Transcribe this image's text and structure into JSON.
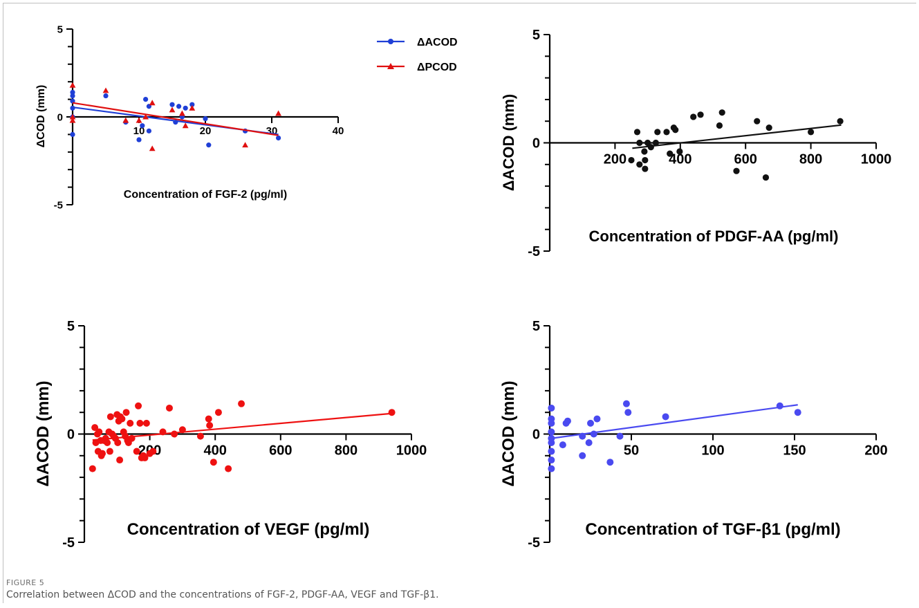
{
  "figure": {
    "label": "FIGURE 5",
    "caption": "Correlation between ΔCOD and the concentrations of FGF-2, PDGF-AA, VEGF and TGF-β1."
  },
  "colors": {
    "blue": "#1f3fd6",
    "red": "#e01010",
    "black": "#111111",
    "vegf": "#ee1111",
    "tgf": "#4a4af0"
  },
  "chart_data": [
    {
      "id": "fgf2",
      "type": "scatter",
      "xlabel": "Concentration of FGF-2 (pg/ml)",
      "ylabel": "ΔCOD (mm)",
      "xlim": [
        0,
        40
      ],
      "ylim": [
        -5,
        5
      ],
      "x_ticks": [
        "10",
        "20",
        "30",
        "40"
      ],
      "y_ticks": [
        "5",
        "0",
        "-5"
      ],
      "legend": {
        "position": "top-right",
        "entries": [
          "ΔACOD",
          "ΔPCOD"
        ]
      },
      "series": [
        {
          "name": "ΔACOD",
          "color": "#1f3fd6",
          "marker": "circle",
          "points": [
            [
              0,
              1.4
            ],
            [
              0,
              1.2
            ],
            [
              0,
              0.9
            ],
            [
              0,
              0.5
            ],
            [
              0,
              0
            ],
            [
              0,
              -1
            ],
            [
              5,
              1.2
            ],
            [
              8,
              -0.3
            ],
            [
              10,
              -1.3
            ],
            [
              10.5,
              -0.5
            ],
            [
              11,
              1
            ],
            [
              11.5,
              0.6
            ],
            [
              11.5,
              -0.8
            ],
            [
              15,
              0.7
            ],
            [
              15.5,
              -0.3
            ],
            [
              16,
              0.6
            ],
            [
              16.5,
              0
            ],
            [
              17,
              0.5
            ],
            [
              18,
              0.7
            ],
            [
              20,
              -0.1
            ],
            [
              20.5,
              -1.6
            ],
            [
              26,
              -0.8
            ],
            [
              31,
              -1.2
            ]
          ],
          "trend": [
            [
              0,
              0.55
            ],
            [
              31,
              -1.0
            ]
          ]
        },
        {
          "name": "ΔPCOD",
          "color": "#e01010",
          "marker": "triangle",
          "points": [
            [
              0,
              1.8
            ],
            [
              0,
              0
            ],
            [
              0,
              -0.2
            ],
            [
              5,
              1.5
            ],
            [
              8,
              -0.2
            ],
            [
              10,
              -0.2
            ],
            [
              11,
              0
            ],
            [
              12,
              0.8
            ],
            [
              12,
              -1.8
            ],
            [
              15,
              0.4
            ],
            [
              16.5,
              0.2
            ],
            [
              17,
              -0.5
            ],
            [
              18,
              0.5
            ],
            [
              26,
              -1.6
            ],
            [
              31,
              0.2
            ]
          ],
          "trend": [
            [
              0,
              0.8
            ],
            [
              31,
              -1.05
            ]
          ]
        }
      ]
    },
    {
      "id": "pdgf",
      "type": "scatter",
      "xlabel": "Concentration of PDGF-AA (pg/ml)",
      "ylabel": "ΔACOD (mm)",
      "xlim": [
        0,
        1000
      ],
      "ylim": [
        -5,
        5
      ],
      "x_ticks": [
        "200",
        "400",
        "600",
        "800",
        "1000"
      ],
      "y_ticks": [
        "5",
        "0",
        "-5"
      ],
      "series": [
        {
          "name": "",
          "color": "#111111",
          "marker": "circle",
          "points": [
            [
              250,
              -0.8
            ],
            [
              268,
              0.5
            ],
            [
              275,
              -1
            ],
            [
              275,
              0
            ],
            [
              290,
              -0.4
            ],
            [
              292,
              -0.8
            ],
            [
              292,
              -1.2
            ],
            [
              300,
              0
            ],
            [
              310,
              -0.2
            ],
            [
              325,
              0
            ],
            [
              330,
              0.5
            ],
            [
              358,
              0.5
            ],
            [
              368,
              -0.5
            ],
            [
              380,
              0.7
            ],
            [
              385,
              0.6
            ],
            [
              398,
              -0.4
            ],
            [
              440,
              1.2
            ],
            [
              462,
              1.3
            ],
            [
              520,
              0.8
            ],
            [
              528,
              1.4
            ],
            [
              572,
              -1.3
            ],
            [
              635,
              1
            ],
            [
              662,
              -1.6
            ],
            [
              672,
              0.7
            ],
            [
              800,
              0.5
            ],
            [
              890,
              1
            ]
          ],
          "trend": [
            [
              253,
              -0.25
            ],
            [
              893,
              0.82
            ]
          ]
        }
      ]
    },
    {
      "id": "vegf",
      "type": "scatter",
      "xlabel": "Concentration of VEGF (pg/ml)",
      "ylabel": "ΔACOD (mm)",
      "xlim": [
        0,
        1000
      ],
      "ylim": [
        -5,
        5
      ],
      "x_ticks": [
        "200",
        "400",
        "600",
        "800",
        "1000"
      ],
      "y_ticks": [
        "5",
        "0",
        "-5"
      ],
      "series": [
        {
          "name": "",
          "color": "#ee1111",
          "marker": "circle",
          "points": [
            [
              25,
              -1.6
            ],
            [
              32,
              0.3
            ],
            [
              35,
              -0.4
            ],
            [
              40,
              0
            ],
            [
              42,
              -0.8
            ],
            [
              45,
              0.1
            ],
            [
              50,
              -0.3
            ],
            [
              52,
              -1
            ],
            [
              55,
              -0.9
            ],
            [
              60,
              -0.3
            ],
            [
              65,
              -0.2
            ],
            [
              70,
              -0.4
            ],
            [
              75,
              0.1
            ],
            [
              78,
              -0.8
            ],
            [
              80,
              0.8
            ],
            [
              85,
              0
            ],
            [
              90,
              -0.1
            ],
            [
              95,
              -0.2
            ],
            [
              100,
              0.9
            ],
            [
              102,
              -0.4
            ],
            [
              105,
              0.6
            ],
            [
              108,
              -1.2
            ],
            [
              110,
              0.8
            ],
            [
              115,
              0.7
            ],
            [
              120,
              0.1
            ],
            [
              125,
              -0.1
            ],
            [
              128,
              1
            ],
            [
              132,
              -0.3
            ],
            [
              135,
              -0.4
            ],
            [
              140,
              0.5
            ],
            [
              145,
              -0.2
            ],
            [
              160,
              -0.8
            ],
            [
              165,
              1.3
            ],
            [
              170,
              0.5
            ],
            [
              175,
              -1.1
            ],
            [
              180,
              -1
            ],
            [
              185,
              -1.1
            ],
            [
              190,
              0.5
            ],
            [
              200,
              -0.9
            ],
            [
              210,
              -0.8
            ],
            [
              240,
              0.1
            ],
            [
              260,
              1.2
            ],
            [
              275,
              0
            ],
            [
              300,
              0.2
            ],
            [
              355,
              -0.1
            ],
            [
              380,
              0.7
            ],
            [
              383,
              0.4
            ],
            [
              395,
              -1.3
            ],
            [
              410,
              1
            ],
            [
              440,
              -1.6
            ],
            [
              480,
              1.4
            ],
            [
              940,
              1
            ]
          ],
          "trend": [
            [
              25,
              -0.28
            ],
            [
              940,
              0.95
            ]
          ]
        }
      ]
    },
    {
      "id": "tgf",
      "type": "scatter",
      "xlabel": "Concentration of TGF-β1 (pg/ml)",
      "ylabel": "ΔACOD (mm)",
      "xlim": [
        0,
        200
      ],
      "ylim": [
        -5,
        5
      ],
      "x_ticks": [
        "50",
        "100",
        "150",
        "200"
      ],
      "y_ticks": [
        "5",
        "0",
        "-5"
      ],
      "series": [
        {
          "name": "",
          "color": "#4a4af0",
          "marker": "circle",
          "points": [
            [
              1,
              1.2
            ],
            [
              1,
              0.7
            ],
            [
              1,
              0.5
            ],
            [
              1,
              0.1
            ],
            [
              1,
              -0.2
            ],
            [
              1,
              -0.4
            ],
            [
              1,
              -0.8
            ],
            [
              1,
              -1.2
            ],
            [
              1,
              -1.6
            ],
            [
              8,
              -0.5
            ],
            [
              10,
              0.5
            ],
            [
              11,
              0.6
            ],
            [
              20,
              -1
            ],
            [
              20,
              -0.1
            ],
            [
              24,
              -0.4
            ],
            [
              25,
              0.5
            ],
            [
              27,
              0
            ],
            [
              29,
              0.7
            ],
            [
              37,
              -1.3
            ],
            [
              43,
              -0.1
            ],
            [
              47,
              1.4
            ],
            [
              48,
              1
            ],
            [
              71,
              0.8
            ],
            [
              141,
              1.3
            ],
            [
              152,
              1
            ]
          ],
          "trend": [
            [
              1,
              -0.2
            ],
            [
              152,
              1.35
            ]
          ]
        }
      ]
    }
  ]
}
